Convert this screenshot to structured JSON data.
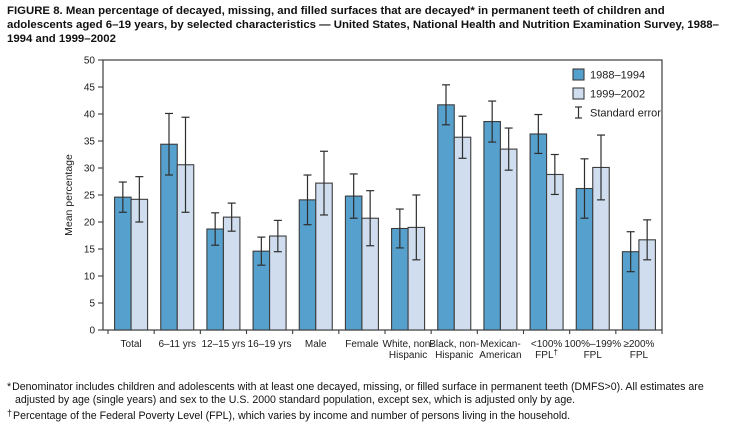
{
  "title": "FIGURE 8. Mean percentage of decayed, missing, and filled surfaces that are decayed* in permanent teeth of children and adolescents aged 6–19 years, by selected characteristics — United States, National Health and Nutrition Examination Survey, 1988–1994 and 1999–2002",
  "footnotes": [
    {
      "marker": "*",
      "text": "Denominator includes children and adolescents with at least one decayed, missing, or filled surface in permanent teeth (DMFS>0). All estimates are adjusted by age (single years) and sex to the U.S. 2000 standard population, except sex, which is adjusted only by age."
    },
    {
      "marker": "†",
      "text": "Percentage of the Federal Poverty Level (FPL), which varies by income and number of persons living in the household."
    }
  ],
  "chart_data": {
    "type": "bar",
    "ylabel": "Mean percentage",
    "xlabel": "",
    "ylim": [
      0,
      50
    ],
    "ytick_step": 5,
    "grid": false,
    "legend_position": "top-right",
    "error_bar_legend_label": "Standard error",
    "categories": [
      [
        "Total"
      ],
      [
        "6–11 yrs"
      ],
      [
        "12–15 yrs"
      ],
      [
        "16–19 yrs"
      ],
      [
        "Male"
      ],
      [
        "Female"
      ],
      [
        "White, non-",
        "Hispanic"
      ],
      [
        "Black, non-",
        "Hispanic"
      ],
      [
        "Mexican-",
        "American"
      ],
      [
        "<100%",
        "FPL†"
      ],
      [
        "100%–199%",
        "FPL"
      ],
      [
        "≥200%",
        "FPL"
      ]
    ],
    "series": [
      {
        "name": "1988–1994",
        "color": "#56a0cd",
        "values": [
          24.6,
          34.4,
          18.7,
          14.6,
          24.1,
          24.8,
          18.8,
          41.7,
          38.6,
          36.3,
          26.2,
          14.5
        ],
        "standard_errors": [
          2.8,
          5.7,
          3.0,
          2.6,
          4.6,
          4.1,
          3.6,
          3.7,
          3.8,
          3.6,
          5.5,
          3.7
        ]
      },
      {
        "name": "1999–2002",
        "color": "#cfddee",
        "values": [
          24.2,
          30.6,
          20.9,
          17.4,
          27.2,
          20.7,
          19.0,
          35.7,
          33.5,
          28.8,
          30.1,
          16.7
        ],
        "standard_errors": [
          4.2,
          8.8,
          2.6,
          2.9,
          5.9,
          5.1,
          6.0,
          3.9,
          3.9,
          3.7,
          6.0,
          3.7
        ]
      }
    ],
    "colors": {
      "axis_stroke": "#3c3c3c",
      "error_bar": "#2e2e2e",
      "text": "#1c1c1c"
    }
  }
}
